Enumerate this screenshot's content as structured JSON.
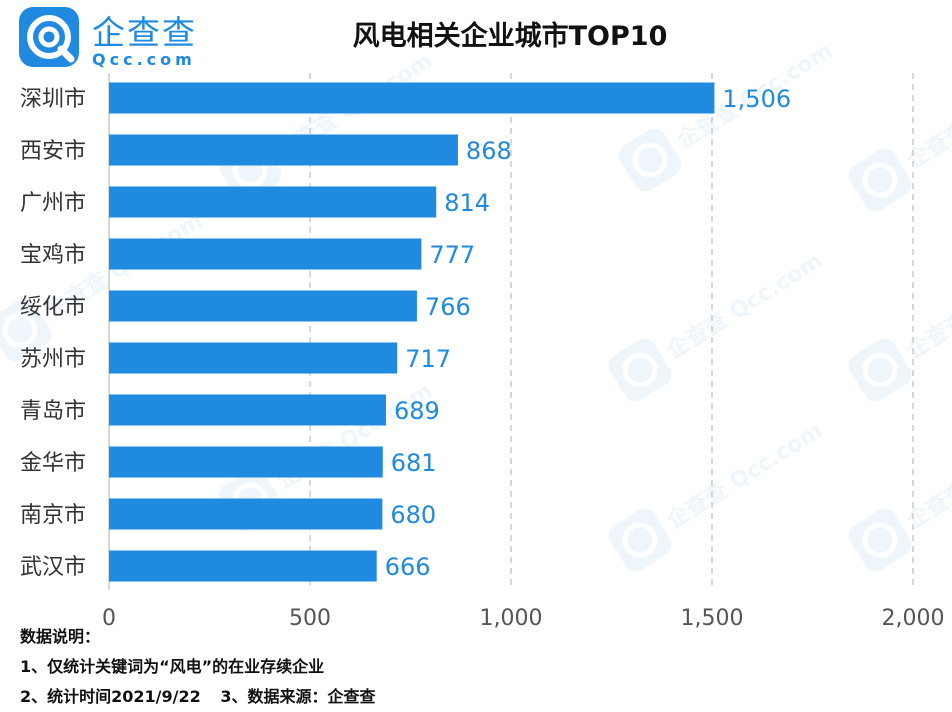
{
  "brand": {
    "name_cn": "企查查",
    "name_en": "Qcc.com",
    "color": "#1f8ae0"
  },
  "watermark_text": "企查查 Qcc.com",
  "chart_data": {
    "type": "bar",
    "orientation": "horizontal",
    "title": "风电相关企业城市TOP10",
    "categories": [
      "深圳市",
      "西安市",
      "广州市",
      "宝鸡市",
      "绥化市",
      "苏州市",
      "青岛市",
      "金华市",
      "南京市",
      "武汉市"
    ],
    "values": [
      1506,
      868,
      814,
      777,
      766,
      717,
      689,
      681,
      680,
      666
    ],
    "value_labels": [
      "1,506",
      "868",
      "814",
      "777",
      "766",
      "717",
      "689",
      "681",
      "680",
      "666"
    ],
    "xlim": [
      0,
      2000
    ],
    "x_ticks": [
      0,
      500,
      1000,
      1500,
      2000
    ],
    "x_tick_labels": [
      "0",
      "500",
      "1,000",
      "1,500",
      "2,000"
    ],
    "grid": "vertical-dashed",
    "bar_color": "#1f8ae0",
    "label_color": "#1f8ae0",
    "xlabel": "",
    "ylabel": ""
  },
  "notes": {
    "heading": "数据说明：",
    "line1": "1、仅统计关键词为“风电”的在业存续企业",
    "line2a": "2、统计时间2021/9/22",
    "line2b": "3、数据来源：企查查"
  }
}
